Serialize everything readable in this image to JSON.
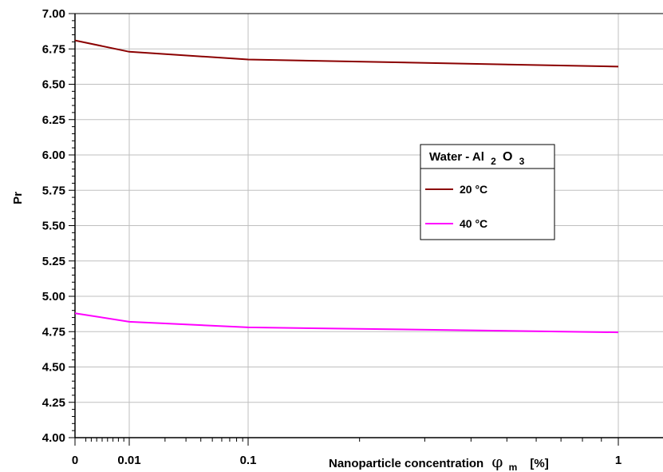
{
  "chart_data": {
    "type": "line",
    "xlabel_parts": {
      "main": "Nanoparticle concentration",
      "symbol": "φ",
      "sub": "m",
      "unit": "[%]"
    },
    "ylabel": "Pr",
    "x_scale": "log-with-zero",
    "x_ticks": [
      {
        "value": 0,
        "label": "0"
      },
      {
        "value": 0.01,
        "label": "0.01"
      },
      {
        "value": 0.1,
        "label": "0.1"
      },
      {
        "value": 1,
        "label": "1"
      }
    ],
    "ylim": [
      4.0,
      7.0
    ],
    "y_ticks": [
      "4.00",
      "4.25",
      "4.50",
      "4.75",
      "5.00",
      "5.25",
      "5.50",
      "5.75",
      "6.00",
      "6.25",
      "6.50",
      "6.75",
      "7.00"
    ],
    "grid": true,
    "legend": {
      "title_parts": {
        "main": "Water - Al",
        "sub1": "2",
        "mid": "O",
        "sub2": "3"
      },
      "placement": "center-right"
    },
    "series": [
      {
        "name": "20 °C",
        "color": "#8b0000",
        "x": [
          0,
          0.01,
          0.1,
          1
        ],
        "values": [
          6.81,
          6.73,
          6.675,
          6.625
        ]
      },
      {
        "name": "40 °C",
        "color": "#ff00ff",
        "x": [
          0,
          0.01,
          0.1,
          1
        ],
        "values": [
          4.88,
          4.82,
          4.78,
          4.745
        ]
      }
    ]
  }
}
